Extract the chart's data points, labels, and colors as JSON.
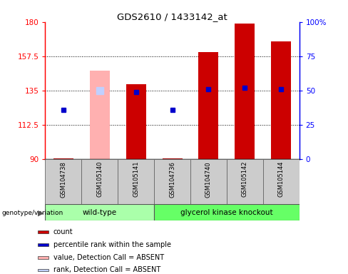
{
  "title": "GDS2610 / 1433142_at",
  "samples": [
    "GSM104738",
    "GSM105140",
    "GSM105141",
    "GSM104736",
    "GSM104740",
    "GSM105142",
    "GSM105144"
  ],
  "count_values": [
    90.5,
    null,
    139.0,
    90.5,
    160.0,
    179.0,
    167.0
  ],
  "rank_values": [
    36.0,
    null,
    49.0,
    36.0,
    51.0,
    52.0,
    51.0
  ],
  "absent_value": 148.0,
  "absent_rank": 50.0,
  "absent_index": 1,
  "ylim_left": [
    90,
    180
  ],
  "ylim_right": [
    0,
    100
  ],
  "yticks_left": [
    90,
    112.5,
    135,
    157.5,
    180
  ],
  "yticks_right": [
    0,
    25,
    50,
    75,
    100
  ],
  "bar_color": "#cc0000",
  "absent_bar_color": "#ffb0b0",
  "absent_rank_color": "#c0d0ff",
  "rank_color": "#0000cc",
  "wt_color": "#aaffaa",
  "gk_color": "#66ff66",
  "sample_box_color": "#cccccc",
  "legend_items": [
    {
      "label": "count",
      "color": "#cc0000"
    },
    {
      "label": "percentile rank within the sample",
      "color": "#0000cc"
    },
    {
      "label": "value, Detection Call = ABSENT",
      "color": "#ffb0b0"
    },
    {
      "label": "rank, Detection Call = ABSENT",
      "color": "#c0d0ff"
    }
  ],
  "wt_indices": [
    0,
    1,
    2
  ],
  "gk_indices": [
    3,
    4,
    5,
    6
  ]
}
